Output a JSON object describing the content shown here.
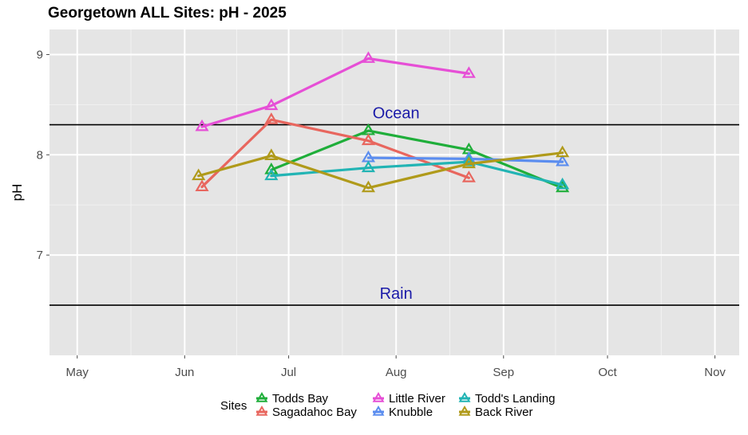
{
  "chart_data": {
    "type": "line",
    "title": "Georgetown ALL Sites: pH - 2025",
    "xlabel": "",
    "ylabel": "pH",
    "x_ticks": [
      {
        "date": "2025-05-01",
        "label": "May"
      },
      {
        "date": "2025-06-01",
        "label": "Jun"
      },
      {
        "date": "2025-07-01",
        "label": "Jul"
      },
      {
        "date": "2025-08-01",
        "label": "Aug"
      },
      {
        "date": "2025-09-01",
        "label": "Sep"
      },
      {
        "date": "2025-10-01",
        "label": "Oct"
      },
      {
        "date": "2025-11-01",
        "label": "Nov"
      }
    ],
    "xlim": [
      "2025-04-23",
      "2025-11-08"
    ],
    "ylim": [
      6.0,
      9.25
    ],
    "y_ticks": [
      7,
      8,
      9
    ],
    "grid": true,
    "legend": {
      "title": "Sites",
      "position": "bottom"
    },
    "reference_lines": [
      {
        "label": "Ocean",
        "y": 8.3
      },
      {
        "label": "Rain",
        "y": 6.5
      }
    ],
    "series": [
      {
        "name": "Todds Bay",
        "color": "#1fae3a",
        "points": [
          {
            "x": "2025-06-26",
            "y": 7.85
          },
          {
            "x": "2025-07-24",
            "y": 8.24
          },
          {
            "x": "2025-08-22",
            "y": 8.05
          },
          {
            "x": "2025-09-18",
            "y": 7.67
          }
        ]
      },
      {
        "name": "Sagadahoc Bay",
        "color": "#e8665e",
        "points": [
          {
            "x": "2025-06-06",
            "y": 7.68
          },
          {
            "x": "2025-06-26",
            "y": 8.35
          },
          {
            "x": "2025-07-24",
            "y": 8.14
          },
          {
            "x": "2025-08-22",
            "y": 7.77
          }
        ]
      },
      {
        "name": "Little River",
        "color": "#e64fd6",
        "points": [
          {
            "x": "2025-06-06",
            "y": 8.28
          },
          {
            "x": "2025-06-26",
            "y": 8.49
          },
          {
            "x": "2025-07-24",
            "y": 8.96
          },
          {
            "x": "2025-08-22",
            "y": 8.81
          }
        ]
      },
      {
        "name": "Knubble",
        "color": "#5b8def",
        "points": [
          {
            "x": "2025-07-24",
            "y": 7.97
          },
          {
            "x": "2025-08-22",
            "y": 7.96
          },
          {
            "x": "2025-09-18",
            "y": 7.93
          }
        ]
      },
      {
        "name": "Todd's Landing",
        "color": "#22b4b4",
        "points": [
          {
            "x": "2025-06-26",
            "y": 7.79
          },
          {
            "x": "2025-07-24",
            "y": 7.87
          },
          {
            "x": "2025-08-22",
            "y": 7.93
          },
          {
            "x": "2025-09-18",
            "y": 7.7
          }
        ]
      },
      {
        "name": "Back River",
        "color": "#b09a1a",
        "points": [
          {
            "x": "2025-06-05",
            "y": 7.79
          },
          {
            "x": "2025-06-26",
            "y": 7.99
          },
          {
            "x": "2025-07-24",
            "y": 7.67
          },
          {
            "x": "2025-08-22",
            "y": 7.91
          },
          {
            "x": "2025-09-18",
            "y": 8.02
          }
        ]
      }
    ]
  }
}
